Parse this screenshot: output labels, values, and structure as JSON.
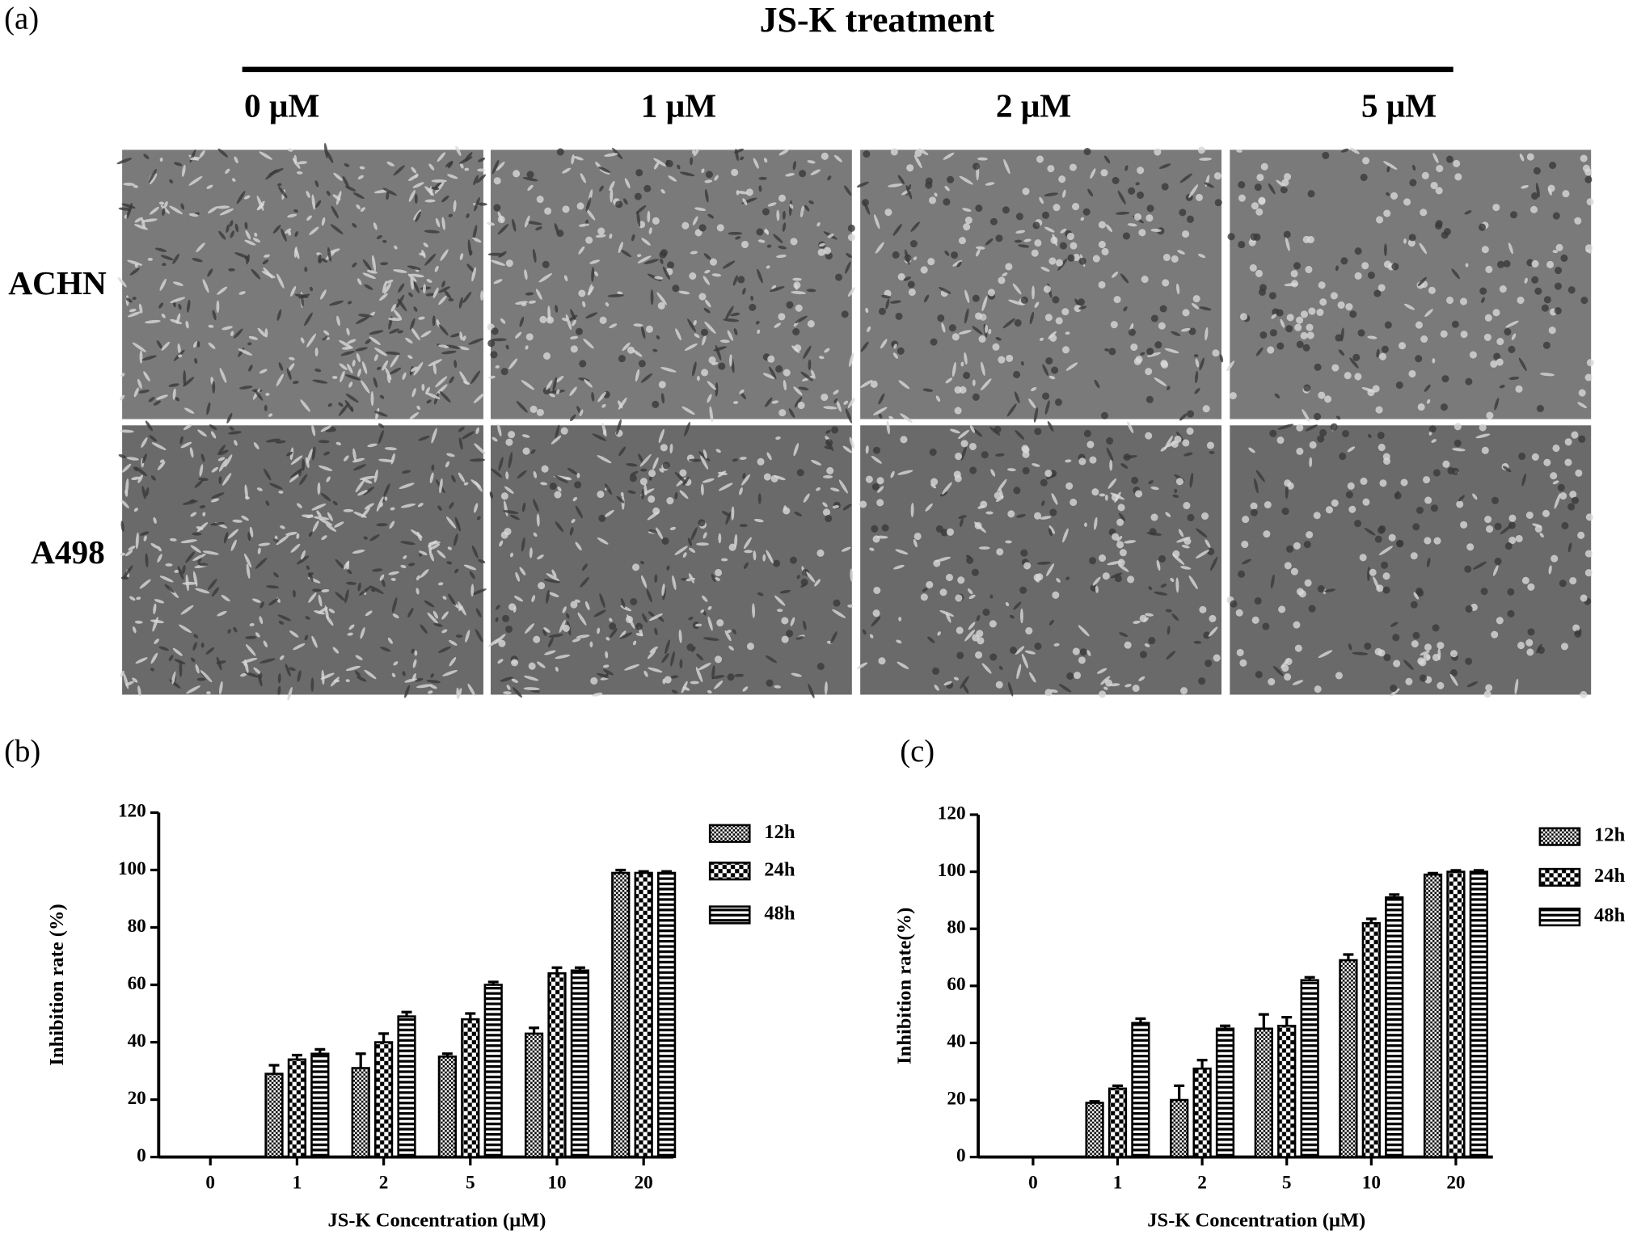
{
  "figure": {
    "panel": "(a)",
    "treatment": "JS-K treatment",
    "columns": [
      "0 μM",
      "1 μM",
      "2 μM",
      "5 μM"
    ],
    "rows": [
      "ACHN",
      "A498"
    ]
  },
  "chart_data": [
    {
      "type": "bar",
      "panel": "(b)",
      "x_label": "JS-K Concentration (μM)",
      "y_label": "Inhibition rate (%)",
      "categories": [
        "0",
        "1",
        "2",
        "5",
        "10",
        "20"
      ],
      "ylim": [
        0,
        120
      ],
      "yticks": [
        0,
        20,
        40,
        60,
        80,
        100,
        120
      ],
      "series": [
        {
          "name": "12h",
          "color": "#000000",
          "values": [
            0,
            29,
            31,
            35,
            43,
            99
          ],
          "errors": [
            0,
            3,
            5,
            1,
            2,
            1
          ]
        },
        {
          "name": "24h",
          "color": "#000000",
          "values": [
            0,
            34,
            40,
            48,
            64,
            99
          ],
          "errors": [
            0,
            1.5,
            3,
            2,
            2,
            0.5
          ]
        },
        {
          "name": "48h",
          "color": "#000000",
          "values": [
            0,
            36,
            49,
            60,
            65,
            99
          ],
          "errors": [
            0,
            1.5,
            1.5,
            1,
            1,
            0.5
          ]
        }
      ]
    },
    {
      "type": "bar",
      "panel": "(c)",
      "x_label": "JS-K Concentration (μM)",
      "y_label": "Inhibition rate(%)",
      "categories": [
        "0",
        "1",
        "2",
        "5",
        "10",
        "20"
      ],
      "ylim": [
        0,
        120
      ],
      "yticks": [
        0,
        20,
        40,
        60,
        80,
        100,
        120
      ],
      "series": [
        {
          "name": "12h",
          "color": "#000000",
          "values": [
            0,
            19,
            20,
            45,
            69,
            99
          ],
          "errors": [
            0,
            0.5,
            5,
            5,
            2,
            0.5
          ]
        },
        {
          "name": "24h",
          "color": "#000000",
          "values": [
            0,
            24,
            31,
            46,
            82,
            100
          ],
          "errors": [
            0,
            1,
            3,
            3,
            1.5,
            0.5
          ]
        },
        {
          "name": "48h",
          "color": "#000000",
          "values": [
            0,
            47,
            45,
            62,
            91,
            100
          ],
          "errors": [
            0,
            1.5,
            1,
            1,
            1,
            0.5
          ]
        }
      ]
    }
  ]
}
